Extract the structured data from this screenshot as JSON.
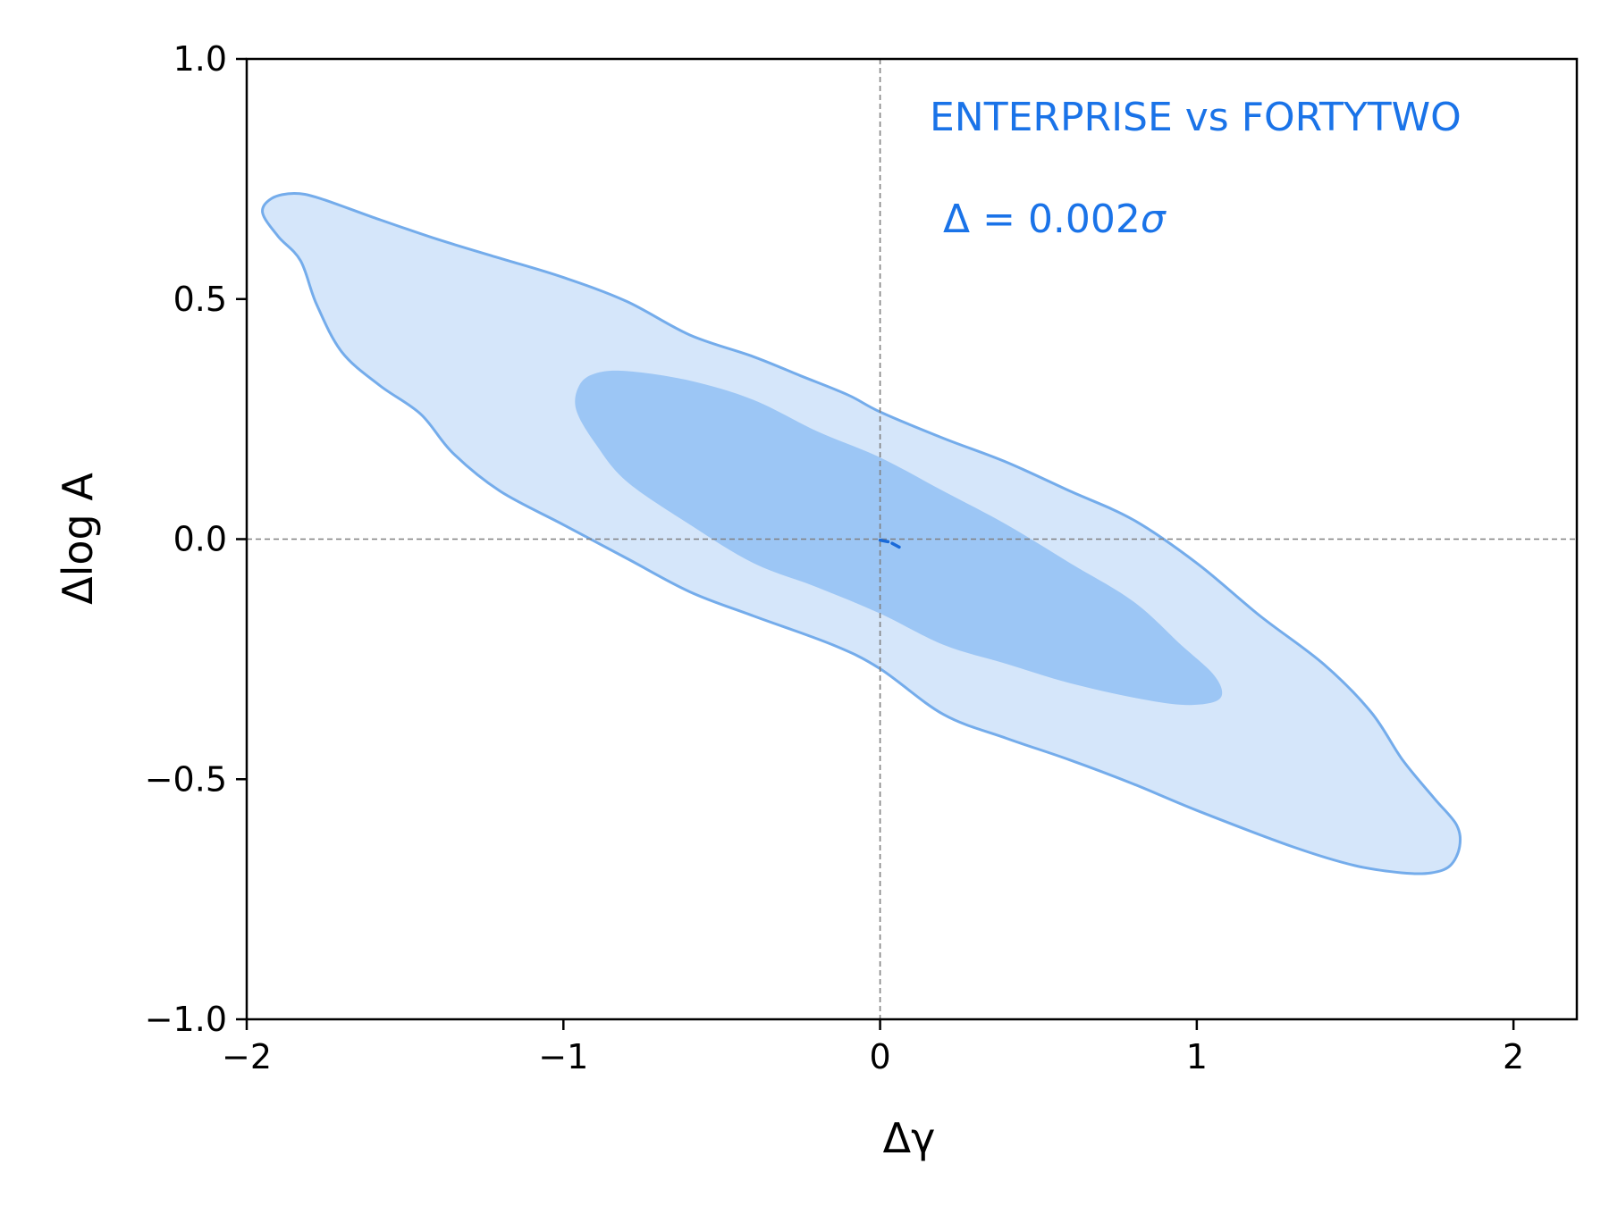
{
  "chart_data": {
    "type": "contour",
    "xlabel": "Δγ",
    "ylabel": "Δlog A",
    "xlim": [
      -2,
      2.2
    ],
    "ylim": [
      -1.0,
      1.0
    ],
    "x_ticks": [
      -2,
      -1,
      0,
      1,
      2
    ],
    "x_tick_labels": [
      "−2",
      "−1",
      "0",
      "1",
      "2"
    ],
    "y_ticks": [
      -1.0,
      -0.5,
      0.0,
      0.5,
      1.0
    ],
    "y_tick_labels": [
      "−1.0",
      "−0.5",
      "0.0",
      "0.5",
      "1.0"
    ],
    "reference_lines": {
      "x": 0,
      "y": 0,
      "style": "dashed",
      "color": "#808080"
    },
    "grid": false,
    "colors": {
      "outer_fill": "#d5e6fa",
      "outer_edge": "#74aceb",
      "inner_fill": "#9cc6f5",
      "annotation": "#1a73e8",
      "center_mark": "#1a6ad9"
    },
    "annotations": {
      "comparison": "ENTERPRISE vs FORTYTWO",
      "tension_prefix": "Δ = 0.002",
      "tension_symbol": "σ"
    },
    "contours": [
      {
        "level": "outer",
        "points": [
          [
            -1.95,
            0.68
          ],
          [
            -1.92,
            0.71
          ],
          [
            -1.85,
            0.72
          ],
          [
            -1.77,
            0.71
          ],
          [
            -1.6,
            0.67
          ],
          [
            -1.4,
            0.625
          ],
          [
            -1.2,
            0.585
          ],
          [
            -1.0,
            0.545
          ],
          [
            -0.8,
            0.495
          ],
          [
            -0.6,
            0.425
          ],
          [
            -0.4,
            0.38
          ],
          [
            -0.25,
            0.34
          ],
          [
            -0.1,
            0.3
          ],
          [
            0.0,
            0.265
          ],
          [
            0.2,
            0.21
          ],
          [
            0.4,
            0.16
          ],
          [
            0.6,
            0.1
          ],
          [
            0.8,
            0.04
          ],
          [
            1.0,
            -0.05
          ],
          [
            1.2,
            -0.16
          ],
          [
            1.4,
            -0.26
          ],
          [
            1.55,
            -0.36
          ],
          [
            1.65,
            -0.46
          ],
          [
            1.75,
            -0.54
          ],
          [
            1.82,
            -0.595
          ],
          [
            1.83,
            -0.64
          ],
          [
            1.8,
            -0.68
          ],
          [
            1.74,
            -0.695
          ],
          [
            1.65,
            -0.695
          ],
          [
            1.5,
            -0.68
          ],
          [
            1.3,
            -0.64
          ],
          [
            1.0,
            -0.565
          ],
          [
            0.8,
            -0.51
          ],
          [
            0.6,
            -0.46
          ],
          [
            0.4,
            -0.415
          ],
          [
            0.2,
            -0.365
          ],
          [
            0.0,
            -0.27
          ],
          [
            -0.15,
            -0.22
          ],
          [
            -0.4,
            -0.16
          ],
          [
            -0.6,
            -0.11
          ],
          [
            -0.8,
            -0.04
          ],
          [
            -1.0,
            0.03
          ],
          [
            -1.2,
            0.1
          ],
          [
            -1.35,
            0.18
          ],
          [
            -1.45,
            0.26
          ],
          [
            -1.58,
            0.32
          ],
          [
            -1.7,
            0.39
          ],
          [
            -1.78,
            0.49
          ],
          [
            -1.83,
            0.58
          ],
          [
            -1.9,
            0.63
          ]
        ]
      },
      {
        "level": "inner",
        "points": [
          [
            -0.95,
            0.32
          ],
          [
            -0.9,
            0.345
          ],
          [
            -0.8,
            0.35
          ],
          [
            -0.6,
            0.33
          ],
          [
            -0.4,
            0.29
          ],
          [
            -0.2,
            0.225
          ],
          [
            0.0,
            0.17
          ],
          [
            0.2,
            0.1
          ],
          [
            0.4,
            0.03
          ],
          [
            0.6,
            -0.05
          ],
          [
            0.8,
            -0.13
          ],
          [
            0.95,
            -0.22
          ],
          [
            1.05,
            -0.28
          ],
          [
            1.08,
            -0.32
          ],
          [
            1.05,
            -0.34
          ],
          [
            0.95,
            -0.345
          ],
          [
            0.8,
            -0.33
          ],
          [
            0.6,
            -0.3
          ],
          [
            0.4,
            -0.26
          ],
          [
            0.2,
            -0.22
          ],
          [
            0.0,
            -0.155
          ],
          [
            -0.2,
            -0.1
          ],
          [
            -0.4,
            -0.05
          ],
          [
            -0.6,
            0.03
          ],
          [
            -0.8,
            0.12
          ],
          [
            -0.9,
            0.2
          ],
          [
            -0.96,
            0.27
          ]
        ]
      }
    ],
    "center_mark": [
      [
        0.0,
        -0.002
      ],
      [
        0.03,
        -0.006
      ],
      [
        0.07,
        -0.02
      ]
    ]
  }
}
